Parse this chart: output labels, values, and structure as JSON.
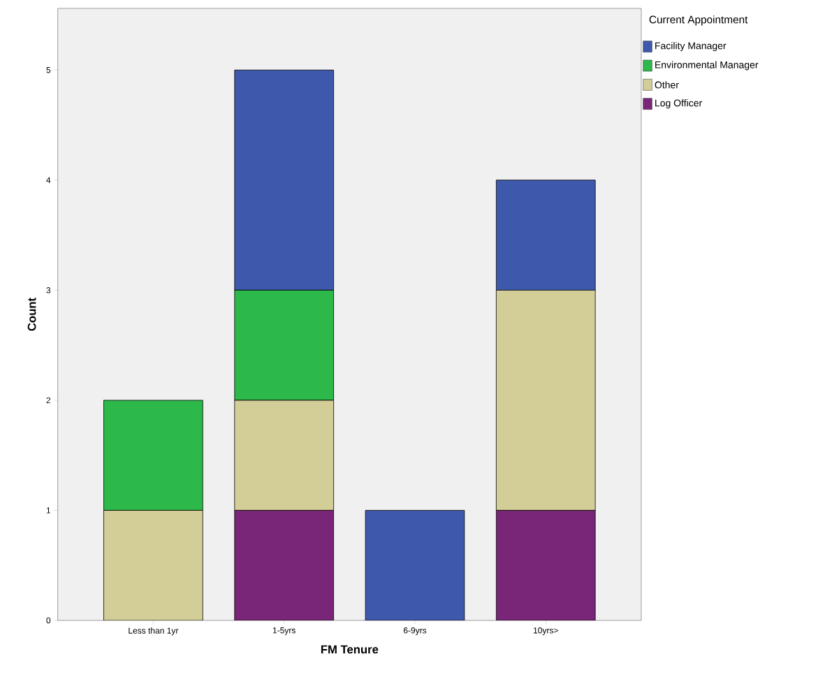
{
  "chart_data": {
    "type": "bar",
    "stacked": true,
    "xlabel": "FM Tenure",
    "ylabel": "Count",
    "legend_title": "Current Appointment",
    "legend": "top right",
    "grid": false,
    "categories": [
      "Less than 1yr",
      "1-5yrs",
      "6-9yrs",
      "10yrs>"
    ],
    "ylim": [
      0,
      5.56
    ],
    "yticks": [
      0,
      1,
      2,
      3,
      4,
      5
    ],
    "series": [
      {
        "name": "Log Officer",
        "color": "#7a2678",
        "values": [
          0,
          1,
          0,
          1
        ]
      },
      {
        "name": "Other",
        "color": "#d3ce97",
        "values": [
          1,
          1,
          0,
          2
        ]
      },
      {
        "name": "Environmental Manager",
        "color": "#2db84a",
        "values": [
          1,
          1,
          0,
          0
        ]
      },
      {
        "name": "Facility Manager",
        "color": "#3e58ac",
        "values": [
          0,
          2,
          1,
          1
        ]
      }
    ]
  }
}
